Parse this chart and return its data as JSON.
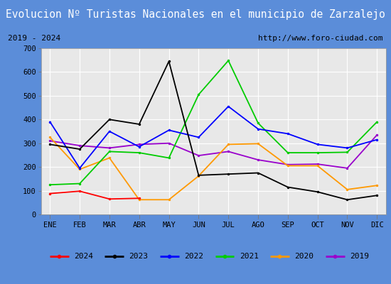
{
  "title": "Evolucion Nº Turistas Nacionales en el municipio de Zarzalejo",
  "subtitle_left": "2019 - 2024",
  "subtitle_right": "http://www.foro-ciudad.com",
  "months": [
    "ENE",
    "FEB",
    "MAR",
    "ABR",
    "MAY",
    "JUN",
    "JUL",
    "AGO",
    "SEP",
    "OCT",
    "NOV",
    "DIC"
  ],
  "ylim": [
    0,
    700
  ],
  "yticks": [
    0,
    100,
    200,
    300,
    400,
    500,
    600,
    700
  ],
  "series": {
    "2024": {
      "values": [
        88,
        98,
        65,
        68,
        null,
        null,
        null,
        null,
        null,
        null,
        null,
        null
      ],
      "color": "#ff0000"
    },
    "2023": {
      "values": [
        295,
        275,
        400,
        380,
        645,
        165,
        170,
        175,
        115,
        95,
        62,
        80
      ],
      "color": "#000000"
    },
    "2022": {
      "values": [
        390,
        195,
        350,
        285,
        355,
        325,
        455,
        360,
        340,
        295,
        280,
        315
      ],
      "color": "#0000ff"
    },
    "2021": {
      "values": [
        125,
        130,
        265,
        260,
        238,
        505,
        648,
        385,
        260,
        260,
        262,
        390
      ],
      "color": "#00cc00"
    },
    "2020": {
      "values": [
        325,
        190,
        238,
        62,
        62,
        162,
        295,
        298,
        205,
        205,
        105,
        122
      ],
      "color": "#ff9900"
    },
    "2019": {
      "values": [
        310,
        290,
        280,
        295,
        300,
        248,
        265,
        230,
        210,
        212,
        195,
        335
      ],
      "color": "#9900cc"
    }
  },
  "legend_order": [
    "2024",
    "2023",
    "2022",
    "2021",
    "2020",
    "2019"
  ],
  "title_bg_color": "#5b8dd9",
  "title_text_color": "#ffffff",
  "subtitle_bg_color": "#f0f0f0",
  "plot_bg_color": "#e8e8e8",
  "grid_color": "#ffffff",
  "outer_bg_color": "#5b8dd9"
}
